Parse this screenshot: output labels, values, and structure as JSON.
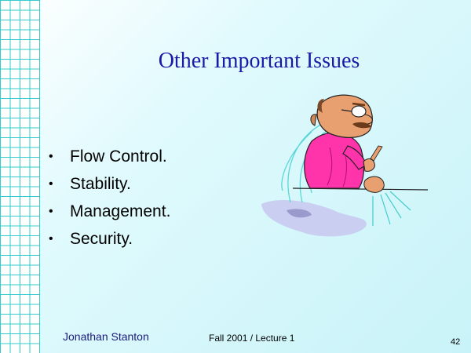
{
  "slide": {
    "title": "Other Important Issues",
    "bullets": [
      {
        "text": "Flow Control."
      },
      {
        "text": "Stability."
      },
      {
        "text": "Management."
      },
      {
        "text": "Security."
      }
    ],
    "footer": {
      "author": "Jonathan Stanton",
      "course": "Fall  2001 / Lecture 1",
      "page_number": "42"
    },
    "bullet_symbol": "•"
  },
  "colors": {
    "title": "#1a1aa6",
    "grid": "#33cccc",
    "shirt": "#ff33aa"
  },
  "icons": {
    "clipart": "man-pounding-table-clipart"
  }
}
